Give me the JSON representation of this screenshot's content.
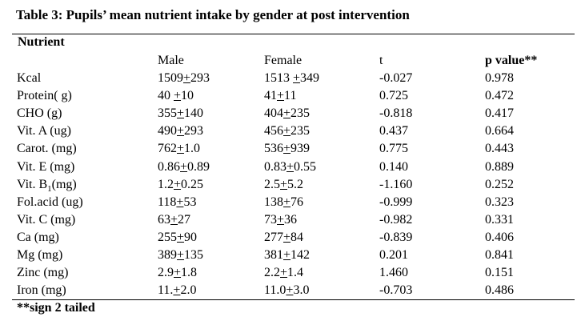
{
  "title": "Table 3: Pupils’ mean nutrient intake by gender at post intervention",
  "group_header": "Nutrient",
  "columns": {
    "male": "Male",
    "female": "Female",
    "t": "t",
    "p": "p value**"
  },
  "rows": [
    {
      "nutrient": "Kcal",
      "male_mean": "1509",
      "male_sd": "293",
      "male_sep": "",
      "female_mean": "1513 ",
      "female_sd": "349",
      "t": "-0.027",
      "p": "0.978"
    },
    {
      "nutrient": "Protein( g)",
      "male_mean": "40 ",
      "male_sd": "10",
      "female_mean": "41",
      "female_sd": "11",
      "t": "0.725",
      "p": "0.472"
    },
    {
      "nutrient": "CHO (g)",
      "male_mean": "355",
      "male_sd": "140",
      "female_mean": "404",
      "female_sd": "235",
      "t": "-0.818",
      "p": "0.417"
    },
    {
      "nutrient": "Vit. A (ug)",
      "male_mean": "490",
      "male_sd": "293",
      "female_mean": "456",
      "female_sd": "235",
      "t": "0.437",
      "p": "0.664"
    },
    {
      "nutrient": "Carot. (mg)",
      "male_mean": "762",
      "male_sd": "1.0",
      "female_mean": "536",
      "female_sd": "939",
      "t": "0.775",
      "p": "0.443"
    },
    {
      "nutrient": "Vit. E (mg)",
      "male_mean": "0.86",
      "male_sd": "0.89",
      "female_mean": "0.83",
      "female_sd": "0.55",
      "t": "0.140",
      "p": "0.889"
    },
    {
      "nutrient_prefix": "Vit. B",
      "nutrient_sub": "1",
      "nutrient_suffix": "(mg)",
      "male_mean": "1.2",
      "male_sd": "0.25",
      "female_mean": "2.5",
      "female_sd": "5.2",
      "t": "-1.160",
      "p": "0.252"
    },
    {
      "nutrient": "Fol.acid (ug)",
      "male_mean": "118",
      "male_sd": "53",
      "female_mean": "138",
      "female_sd": "76",
      "t": "-0.999",
      "p": "0.323"
    },
    {
      "nutrient": "Vit. C (mg)",
      "male_mean": "63",
      "male_sd": "27",
      "female_mean": "73",
      "female_sd": "36",
      "t": "-0.982",
      "p": "0.331"
    },
    {
      "nutrient": "Ca (mg)",
      "male_mean": "255",
      "male_sd": "90",
      "female_mean": "277",
      "female_sd": "84",
      "t": "-0.839",
      "p": "0.406"
    },
    {
      "nutrient": "Mg (mg)",
      "male_mean": "389",
      "male_sd": "135",
      "female_mean": "381",
      "female_sd": "142",
      "t": "0.201",
      "p": "0.841"
    },
    {
      "nutrient": "Zinc (mg)",
      "male_mean": "2.9",
      "male_sd": "1.8",
      "female_mean": "2.2",
      "female_sd": "1.4",
      "t": "1.460",
      "p": "0.151"
    },
    {
      "nutrient": "Iron (mg)",
      "male_mean": "11.",
      "male_sd": "2.0",
      "female_mean": "11.0",
      "female_sd": "3.0",
      "t": "-0.703",
      "p": "0.486"
    }
  ],
  "pm_symbol": "+",
  "footnote": "**sign 2 tailed"
}
